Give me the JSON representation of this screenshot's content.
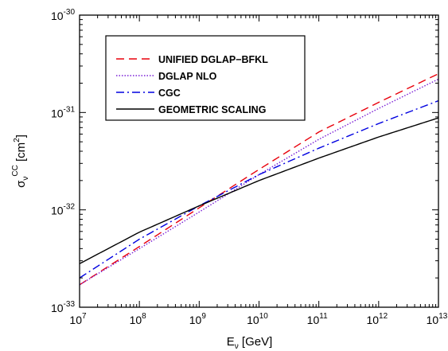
{
  "chart_data": {
    "type": "line",
    "title": "",
    "xlabel": {
      "main": "E",
      "sub": "ν",
      "rest": " [GeV]"
    },
    "ylabel": {
      "main": "σ",
      "sub": "ν",
      "sup": "CC",
      "rest": " [cm",
      "rest_sup": "2",
      "rest_end": "]"
    },
    "x_scale": "log",
    "y_scale": "log",
    "xlim": [
      10000000.0,
      10000000000000.0
    ],
    "ylim": [
      1e-33,
      1e-30
    ],
    "x_ticks": [
      {
        "base": "10",
        "exp": "7"
      },
      {
        "base": "10",
        "exp": "8"
      },
      {
        "base": "10",
        "exp": "9"
      },
      {
        "base": "10",
        "exp": "10"
      },
      {
        "base": "10",
        "exp": "11"
      },
      {
        "base": "10",
        "exp": "12"
      },
      {
        "base": "10",
        "exp": "13"
      }
    ],
    "y_ticks": [
      {
        "base": "10",
        "exp": "-33"
      },
      {
        "base": "10",
        "exp": "-32"
      },
      {
        "base": "10",
        "exp": "-31"
      },
      {
        "base": "10",
        "exp": "-30"
      }
    ],
    "grid": false,
    "legend_position": "top-left",
    "series": [
      {
        "name": "UNIFIED DGLAP−BFKL",
        "color": "#e8000b",
        "dash": "dashed",
        "x": [
          10000000.0,
          100000000.0,
          1000000000.0,
          10000000000.0,
          100000000000.0,
          1000000000000.0,
          10000000000000.0
        ],
        "y": [
          1.7e-33,
          4.2e-33,
          1.05e-32,
          2.6e-32,
          6.3e-32,
          1.27e-31,
          2.5e-31
        ]
      },
      {
        "name": "DGLAP NLO",
        "color": "#7a1fd6",
        "dash": "dotted",
        "x": [
          10000000.0,
          100000000.0,
          1000000000.0,
          10000000000.0,
          100000000000.0,
          1000000000000.0,
          10000000000000.0
        ],
        "y": [
          1.7e-33,
          4e-33,
          9.5e-33,
          2.3e-32,
          5.3e-32,
          1.1e-31,
          2.2e-31
        ]
      },
      {
        "name": "CGC",
        "color": "#0000e0",
        "dash": "dashdot",
        "x": [
          10000000.0,
          100000000.0,
          1000000000.0,
          10000000000.0,
          100000000000.0,
          1000000000000.0,
          10000000000000.0
        ],
        "y": [
          2e-33,
          5e-33,
          1.1e-32,
          2.3e-32,
          4.3e-32,
          7.7e-32,
          1.32e-31
        ]
      },
      {
        "name": "GEOMETRIC SCALING",
        "color": "#000000",
        "dash": "solid",
        "x": [
          10000000.0,
          100000000.0,
          1000000000.0,
          10000000000.0,
          100000000000.0,
          1000000000000.0,
          10000000000000.0
        ],
        "y": [
          2.8e-33,
          5.9e-33,
          1.1e-32,
          2e-32,
          3.4e-32,
          5.6e-32,
          8.8e-32
        ]
      }
    ]
  }
}
